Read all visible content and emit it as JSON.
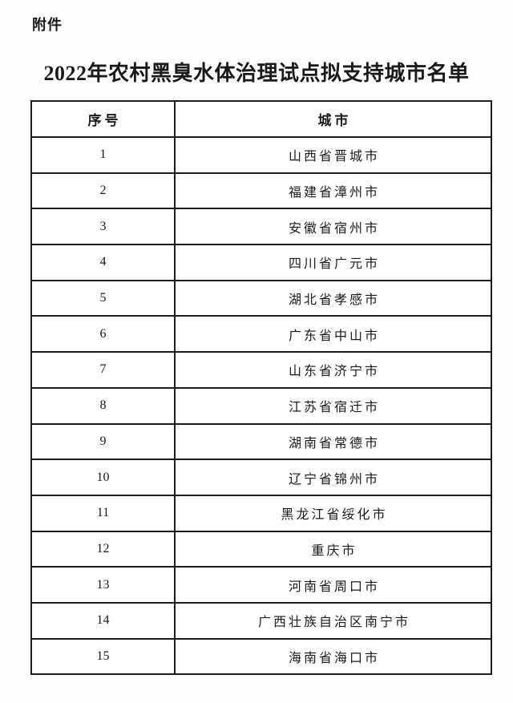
{
  "page": {
    "attachment_label": "附件",
    "title": "2022年农村黑臭水体治理试点拟支持城市名单"
  },
  "table": {
    "columns": [
      "序号",
      "城市"
    ],
    "rows": [
      {
        "no": "1",
        "city": "山西省晋城市"
      },
      {
        "no": "2",
        "city": "福建省漳州市"
      },
      {
        "no": "3",
        "city": "安徽省宿州市"
      },
      {
        "no": "4",
        "city": "四川省广元市"
      },
      {
        "no": "5",
        "city": "湖北省孝感市"
      },
      {
        "no": "6",
        "city": "广东省中山市"
      },
      {
        "no": "7",
        "city": "山东省济宁市"
      },
      {
        "no": "8",
        "city": "江苏省宿迁市"
      },
      {
        "no": "9",
        "city": "湖南省常德市"
      },
      {
        "no": "10",
        "city": "辽宁省锦州市"
      },
      {
        "no": "11",
        "city": "黑龙江省绥化市"
      },
      {
        "no": "12",
        "city": "重庆市"
      },
      {
        "no": "13",
        "city": "河南省周口市"
      },
      {
        "no": "14",
        "city": "广西壮族自治区南宁市"
      },
      {
        "no": "15",
        "city": "海南省海口市"
      }
    ]
  },
  "colors": {
    "border": "#1c1c1c",
    "text": "#1a1a1a",
    "background": "#ffffff"
  }
}
